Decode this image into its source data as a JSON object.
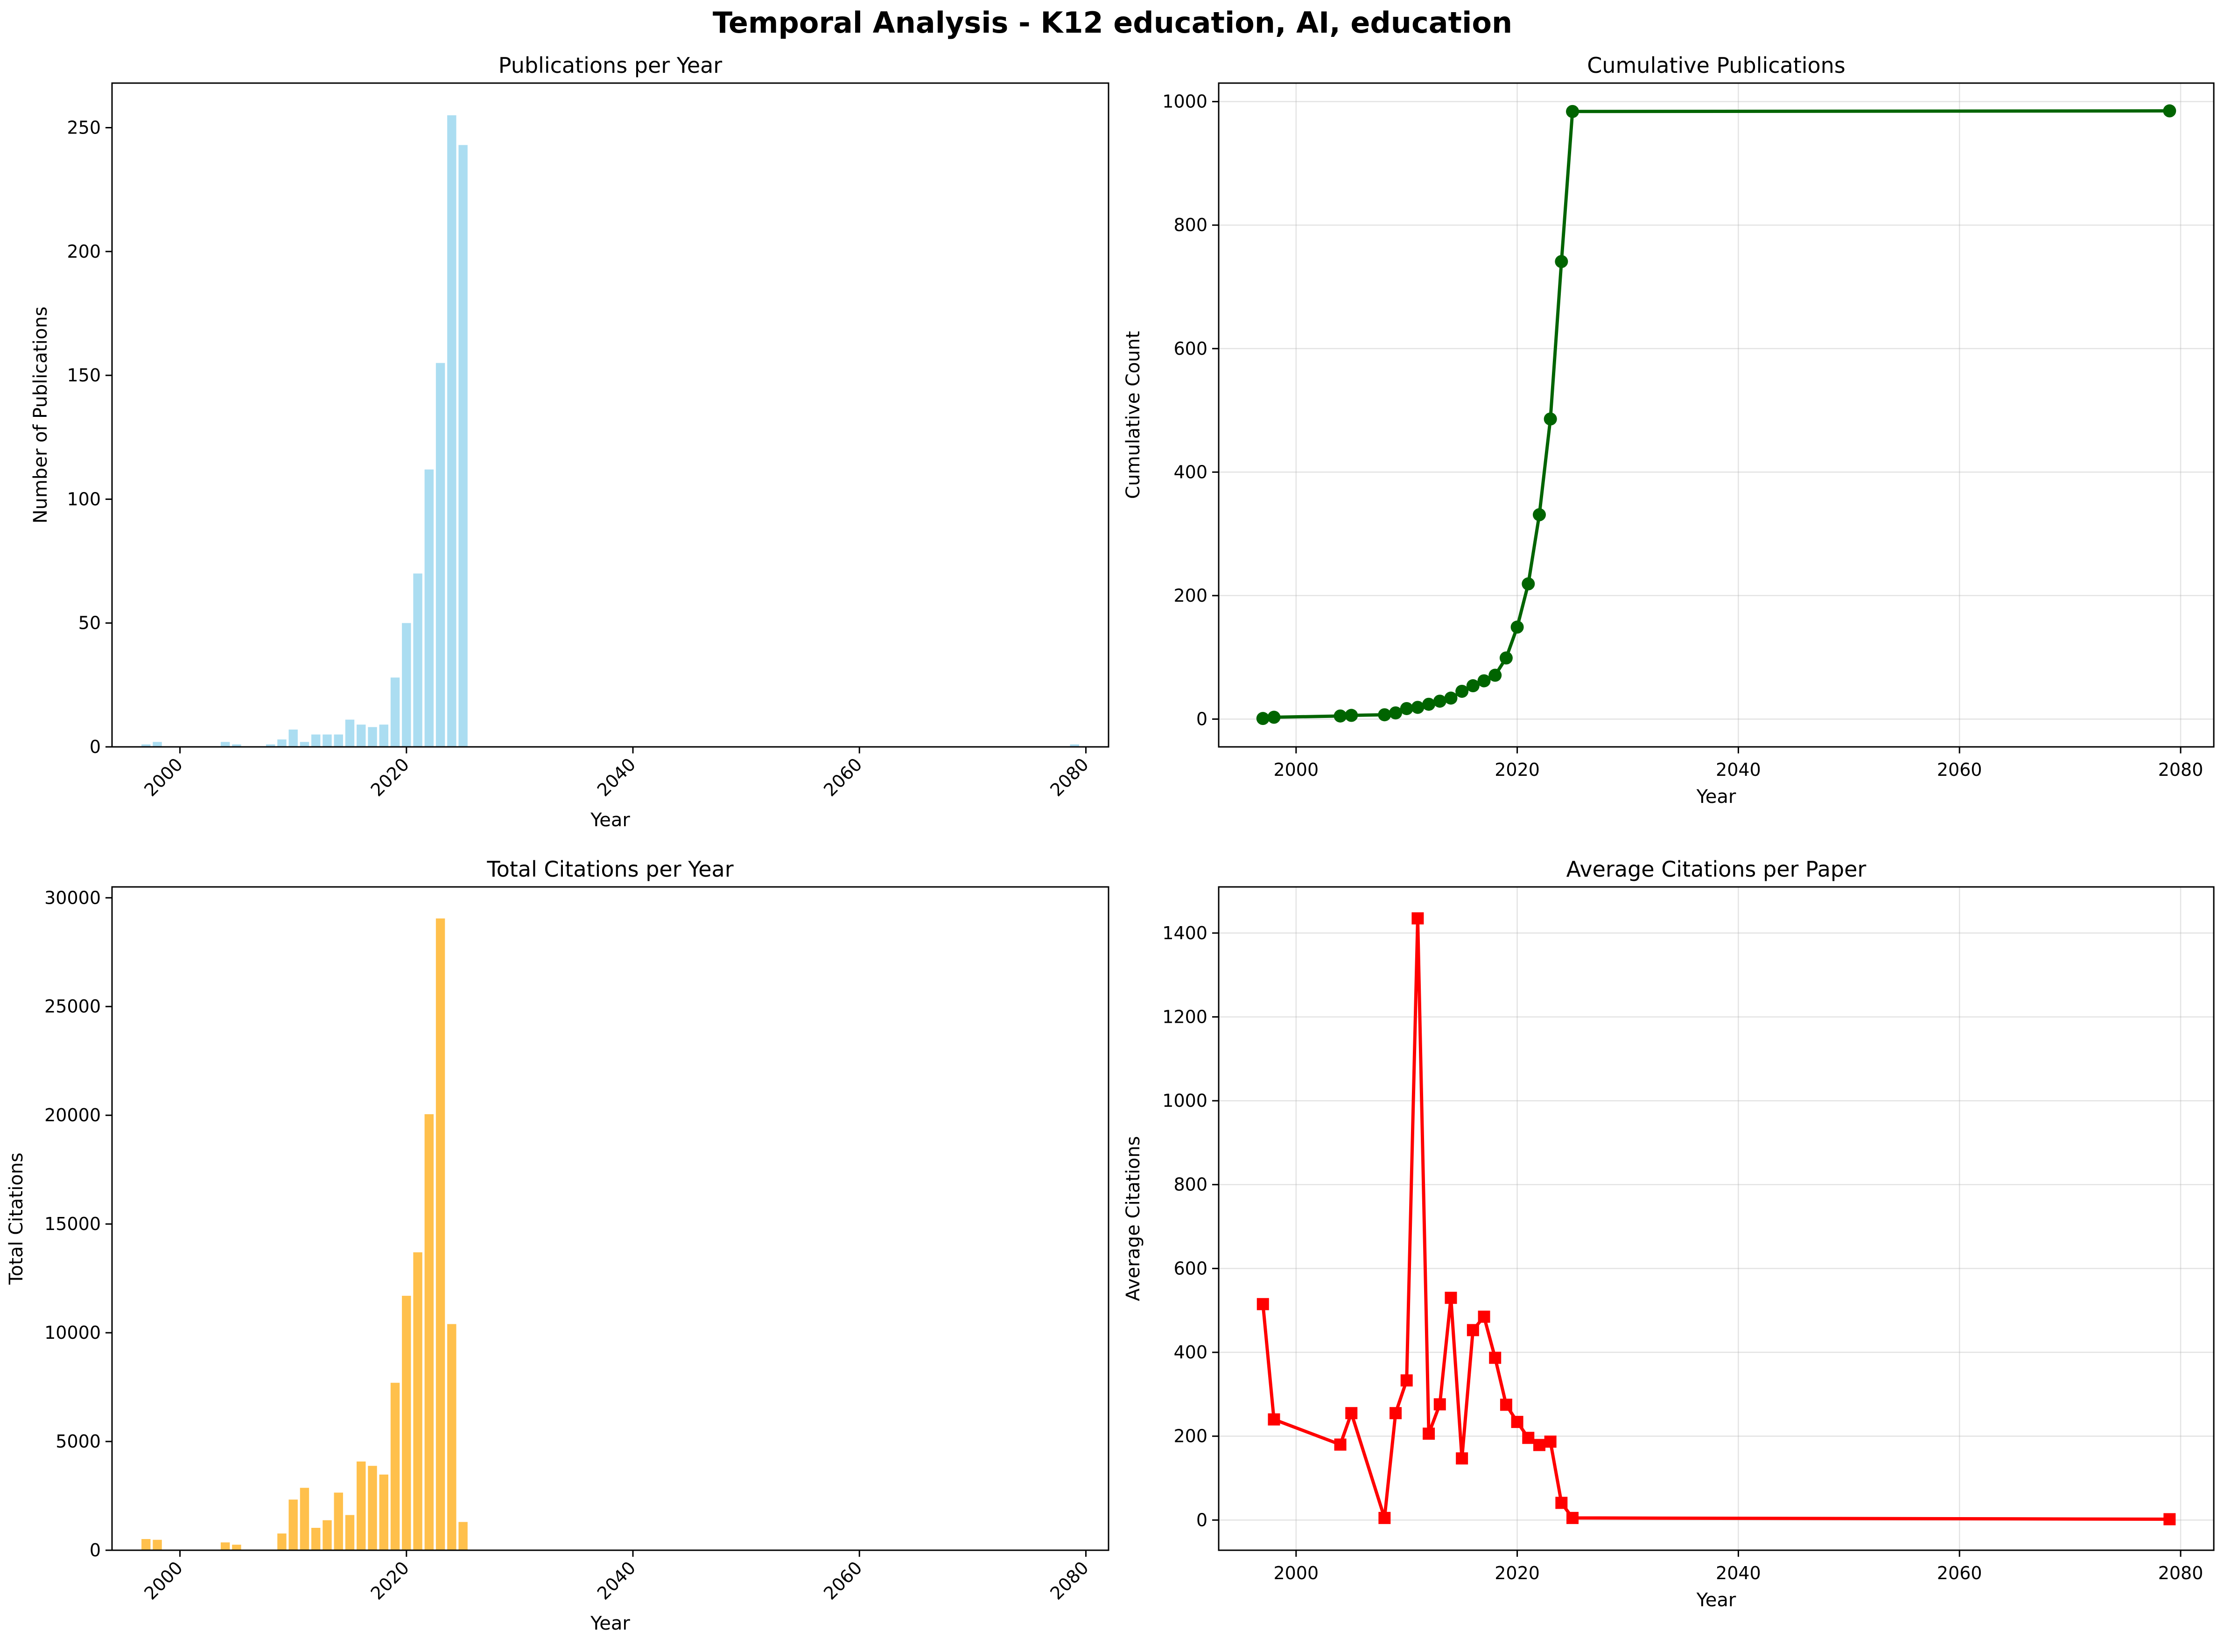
{
  "suptitle": "Temporal Analysis - K12 education, AI, education",
  "colors": {
    "publications_bar": "#87ceeb",
    "cumulative_line": "#006400",
    "citations_bar": "#ffa500",
    "average_line": "#ff0000",
    "grid": "#b0b0b0"
  },
  "chart_data": [
    {
      "id": "pubs",
      "type": "bar",
      "title": "Publications per Year",
      "xlabel": "Year",
      "ylabel": "Number of Publications",
      "xlim": [
        1994,
        2082
      ],
      "ylim": [
        0,
        268
      ],
      "xticks": [
        2000,
        2020,
        2040,
        2060,
        2080
      ],
      "yticks": [
        0,
        50,
        100,
        150,
        200,
        250
      ],
      "xtick_rotation": 45,
      "grid": false,
      "color": "#87ceeb",
      "opacity": 0.7,
      "x": [
        1997,
        1998,
        2004,
        2005,
        2008,
        2009,
        2010,
        2011,
        2012,
        2013,
        2014,
        2015,
        2016,
        2017,
        2018,
        2019,
        2020,
        2021,
        2022,
        2023,
        2024,
        2025,
        2079
      ],
      "values": [
        1,
        2,
        2,
        1,
        1,
        3,
        7,
        2,
        5,
        5,
        5,
        11,
        9,
        8,
        9,
        28,
        50,
        70,
        112,
        155,
        255,
        243,
        1
      ]
    },
    {
      "id": "cumulative",
      "type": "line",
      "title": "Cumulative Publications",
      "xlabel": "Year",
      "ylabel": "Cumulative Count",
      "xlim": [
        1993,
        2083
      ],
      "ylim": [
        -45,
        1030
      ],
      "xticks": [
        2000,
        2020,
        2040,
        2060,
        2080
      ],
      "yticks": [
        0,
        200,
        400,
        600,
        800,
        1000
      ],
      "grid": true,
      "marker": "circle",
      "color": "#006400",
      "x": [
        1997,
        1998,
        2004,
        2005,
        2008,
        2009,
        2010,
        2011,
        2012,
        2013,
        2014,
        2015,
        2016,
        2017,
        2018,
        2019,
        2020,
        2021,
        2022,
        2023,
        2024,
        2025,
        2079
      ],
      "values": [
        1,
        3,
        5,
        6,
        7,
        10,
        17,
        19,
        24,
        29,
        34,
        45,
        54,
        62,
        71,
        99,
        149,
        219,
        331,
        486,
        741,
        984,
        985
      ]
    },
    {
      "id": "citations",
      "type": "bar",
      "title": "Total Citations per Year",
      "xlabel": "Year",
      "ylabel": "Total Citations",
      "xlim": [
        1994,
        2082
      ],
      "ylim": [
        0,
        30500
      ],
      "xticks": [
        2000,
        2020,
        2040,
        2060,
        2080
      ],
      "yticks": [
        0,
        5000,
        10000,
        15000,
        20000,
        25000,
        30000
      ],
      "xtick_rotation": 45,
      "grid": false,
      "color": "#ffa500",
      "opacity": 0.7,
      "x": [
        1997,
        1998,
        2004,
        2005,
        2008,
        2009,
        2010,
        2011,
        2012,
        2013,
        2014,
        2015,
        2016,
        2017,
        2018,
        2019,
        2020,
        2021,
        2022,
        2023,
        2024,
        2025,
        2079
      ],
      "values": [
        515,
        480,
        360,
        255,
        5,
        770,
        2330,
        2870,
        1030,
        1380,
        2650,
        1620,
        4080,
        3880,
        3480,
        7700,
        11700,
        13700,
        20050,
        29050,
        10400,
        1300,
        2
      ]
    },
    {
      "id": "average",
      "type": "line",
      "title": "Average Citations per Paper",
      "xlabel": "Year",
      "ylabel": "Average Citations",
      "xlim": [
        1993,
        2083
      ],
      "ylim": [
        -72,
        1510
      ],
      "xticks": [
        2000,
        2020,
        2040,
        2060,
        2080
      ],
      "yticks": [
        0,
        200,
        400,
        600,
        800,
        1000,
        1200,
        1400
      ],
      "grid": true,
      "marker": "square",
      "color": "#ff0000",
      "x": [
        1997,
        1998,
        2004,
        2005,
        2008,
        2009,
        2010,
        2011,
        2012,
        2013,
        2014,
        2015,
        2016,
        2017,
        2018,
        2019,
        2020,
        2021,
        2022,
        2023,
        2024,
        2025,
        2079
      ],
      "values": [
        515,
        240,
        180,
        255,
        5,
        255,
        333,
        1435,
        206,
        276,
        530,
        147,
        453,
        485,
        387,
        275,
        234,
        196,
        179,
        187,
        41,
        5,
        2
      ]
    }
  ]
}
